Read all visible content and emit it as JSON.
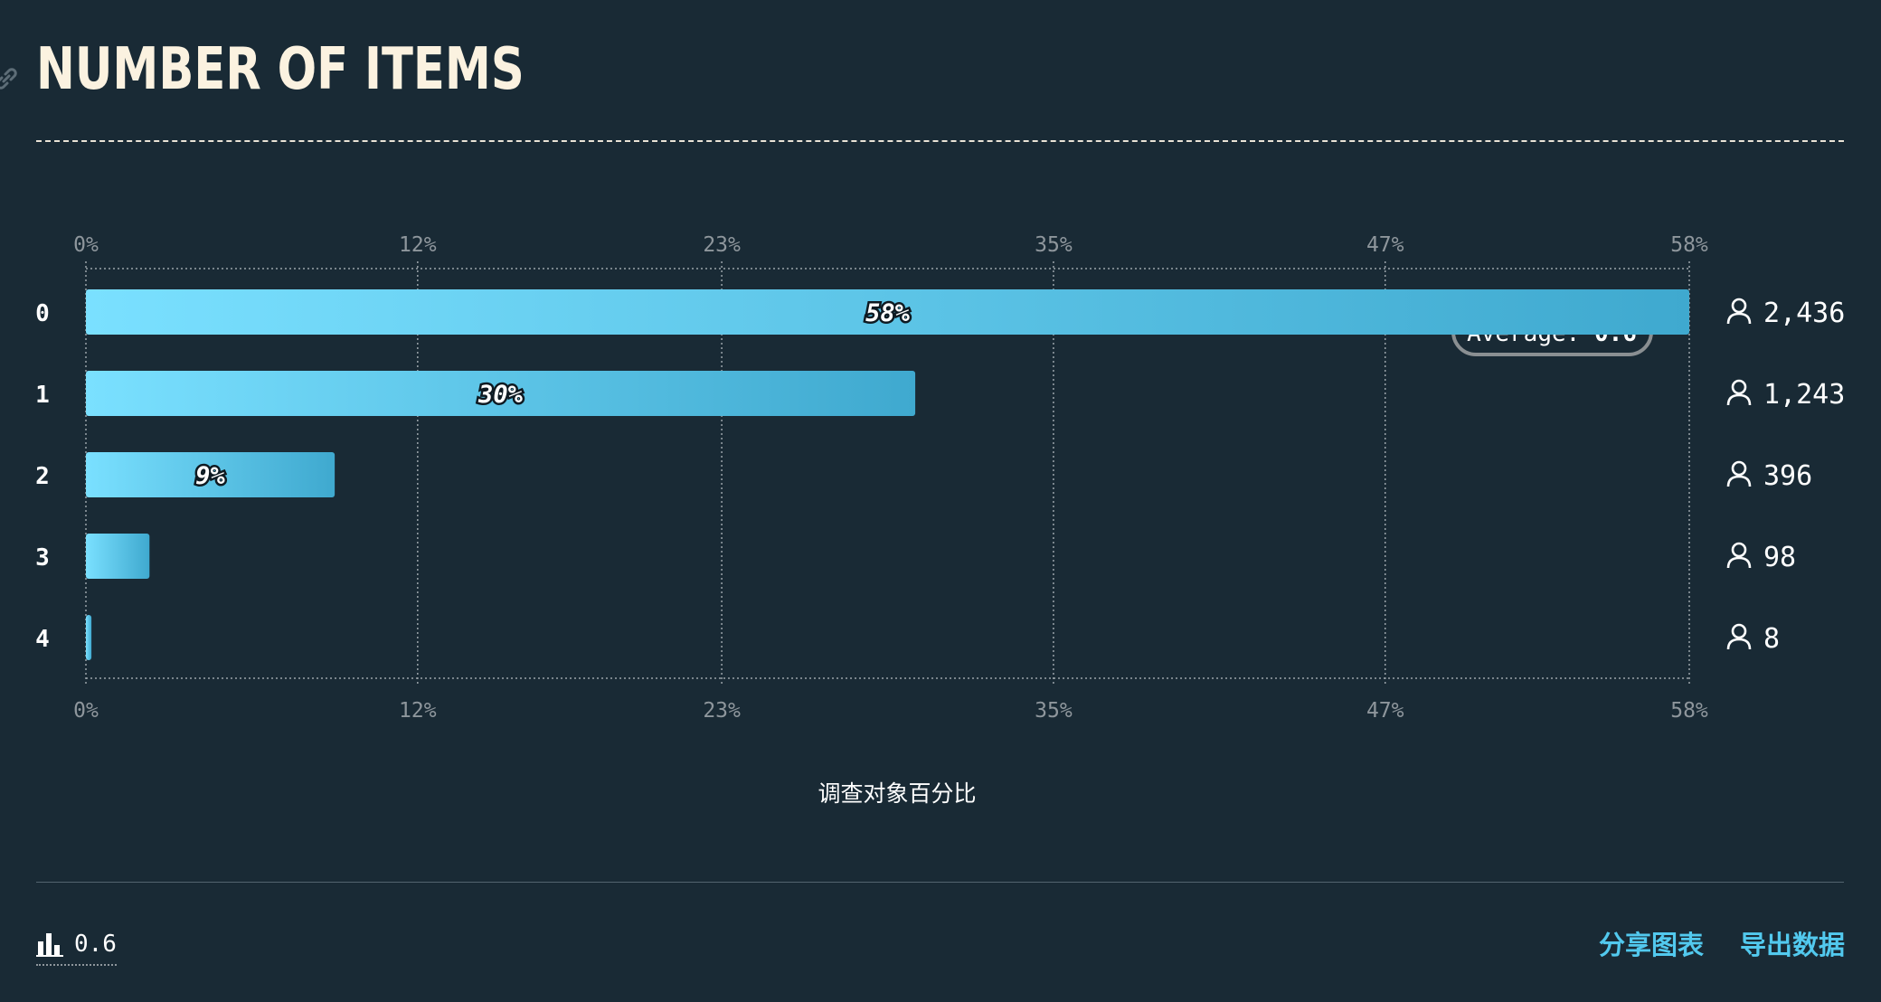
{
  "header": {
    "title": "NUMBER OF ITEMS",
    "link_icon": "link-icon"
  },
  "chart_data": {
    "type": "bar",
    "orientation": "horizontal",
    "title": "NUMBER OF ITEMS",
    "xlabel": "调查对象百分比",
    "ylabel": "",
    "categories": [
      "0",
      "1",
      "2",
      "3",
      "4"
    ],
    "values": [
      58,
      30,
      9,
      2.3,
      0.2
    ],
    "value_labels": [
      "58%",
      "30%",
      "9%",
      "",
      ""
    ],
    "counts": [
      "2,436",
      "1,243",
      "396",
      "98",
      "8"
    ],
    "count_icon": "person-icon",
    "xlim": [
      0,
      58
    ],
    "ticks": [
      0,
      12,
      23,
      35,
      47,
      58
    ],
    "tick_labels": [
      "0%",
      "12%",
      "23%",
      "35%",
      "47%",
      "58%"
    ],
    "grid": true,
    "average": {
      "label": "Average: ",
      "value": "0.6"
    },
    "colors": {
      "bar_start": "#7ae0ff",
      "bar_end": "#3fa9cf",
      "grid": "#9aa3a9",
      "average_line": "#8a8f92"
    }
  },
  "footer": {
    "average_icon": "bar-chart-icon",
    "average_value": "0.6",
    "share_label": "分享图表",
    "export_label": "导出数据",
    "link_color": "#52c9ee"
  }
}
